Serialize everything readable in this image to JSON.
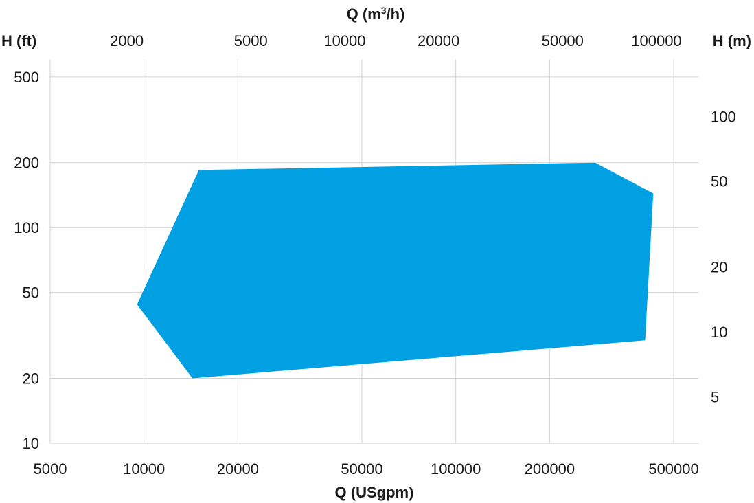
{
  "chart_data": {
    "type": "area",
    "title": "",
    "series_color": "#00a0e3",
    "grid": true,
    "x_scale": "log",
    "y_scale": "log",
    "axes": {
      "x_bottom": {
        "label": "Q (USgpm)",
        "range": [
          5000,
          600000
        ],
        "ticks": [
          5000,
          10000,
          20000,
          50000,
          100000,
          200000,
          500000
        ],
        "tick_labels": [
          "5000",
          "10000",
          "20000",
          "50000",
          "100000",
          "200000",
          "500000"
        ]
      },
      "x_top": {
        "label_main": "Q (m",
        "label_sup": "3",
        "label_tail": "/h)",
        "ticks": [
          2000,
          5000,
          10000,
          20000,
          50000,
          100000
        ],
        "tick_labels": [
          "2000",
          "5000",
          "10000",
          "20000",
          "50000",
          "100000"
        ]
      },
      "y_left": {
        "label": "H (ft)",
        "range": [
          10,
          600
        ],
        "ticks": [
          10,
          20,
          50,
          100,
          200,
          500
        ],
        "tick_labels": [
          "10",
          "20",
          "50",
          "100",
          "200",
          "500"
        ]
      },
      "y_right": {
        "label": "H (m)",
        "ticks": [
          5,
          10,
          20,
          50,
          100
        ],
        "tick_labels": [
          "5",
          "10",
          "20",
          "50",
          "100"
        ]
      }
    },
    "polygon": [
      {
        "x": 9500,
        "y": 44
      },
      {
        "x": 15000,
        "y": 185
      },
      {
        "x": 280000,
        "y": 200
      },
      {
        "x": 430000,
        "y": 144
      },
      {
        "x": 405000,
        "y": 30
      },
      {
        "x": 14300,
        "y": 20
      }
    ]
  }
}
